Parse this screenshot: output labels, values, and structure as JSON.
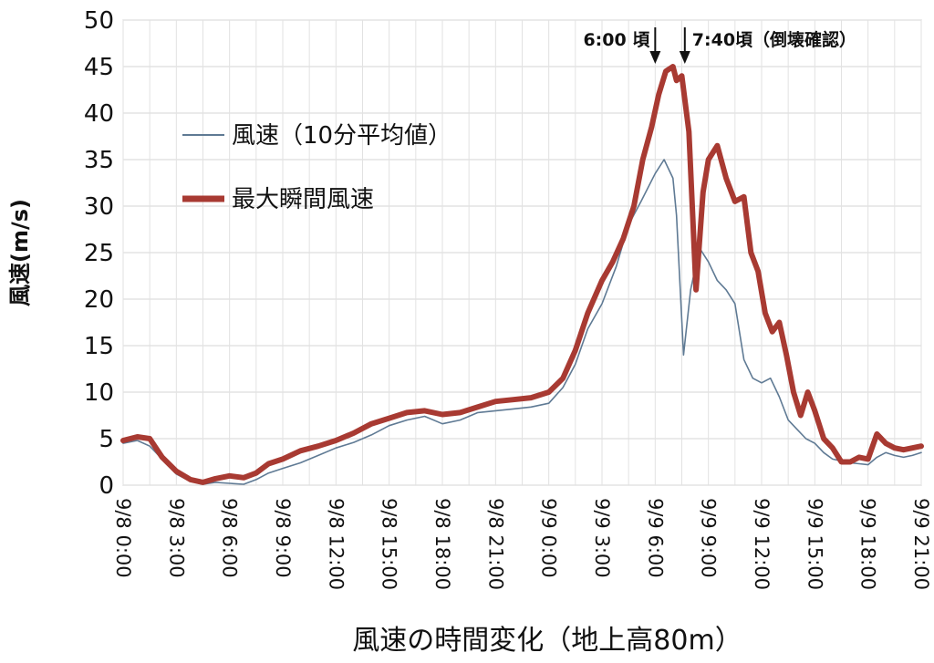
{
  "chart_data": {
    "type": "line",
    "title": "",
    "xlabel": "風速の時間変化（地上高80m）",
    "ylabel": "風速(m/s)",
    "ylim": [
      0,
      50
    ],
    "yticks": [
      0,
      5,
      10,
      15,
      20,
      25,
      30,
      35,
      40,
      45,
      50
    ],
    "xlim": [
      0,
      45
    ],
    "x_unit": "hours since 9/8 0:00",
    "xtick_values": [
      0,
      3,
      6,
      9,
      12,
      15,
      18,
      21,
      24,
      27,
      30,
      33,
      36,
      39,
      42,
      45
    ],
    "xtick_labels": [
      "9/8 0:00",
      "9/8 3:00",
      "9/8 6:00",
      "9/8 9:00",
      "9/8 12:00",
      "9/8 15:00",
      "9/8 18:00",
      "9/8 21:00",
      "9/9 0:00",
      "9/9 3:00",
      "9/9 6:00",
      "9/9 9:00",
      "9/9 12:00",
      "9/9 15:00",
      "9/9 18:00",
      "9/9 21:00"
    ],
    "grid": true,
    "legend": "left",
    "series": [
      {
        "name": "風速（10分平均値）",
        "color": "#5f7a94",
        "x": [
          0,
          0.8,
          1.5,
          2.2,
          3,
          3.8,
          4.5,
          5.2,
          6,
          6.8,
          7.5,
          8.2,
          9,
          10,
          11,
          12,
          13,
          14,
          15,
          16,
          17,
          18,
          19,
          20,
          21,
          22,
          23,
          24,
          24.8,
          25.5,
          26.2,
          27,
          27.8,
          28.5,
          29.2,
          30,
          30.5,
          31,
          31.2,
          31.6,
          32,
          32.5,
          33,
          33.5,
          34,
          34.5,
          35,
          35.5,
          36,
          36.5,
          37,
          37.5,
          38,
          38.5,
          39,
          39.5,
          40,
          40.5,
          41,
          41.5,
          42,
          42.5,
          43,
          43.5,
          44,
          44.5,
          45
        ],
        "values": [
          4.5,
          4.8,
          4.2,
          2.8,
          1.2,
          0.4,
          0.1,
          0.3,
          0.2,
          0.1,
          0.6,
          1.3,
          1.8,
          2.4,
          3.2,
          4.0,
          4.6,
          5.4,
          6.4,
          7.0,
          7.4,
          6.6,
          7.0,
          7.8,
          8.0,
          8.2,
          8.4,
          8.8,
          10.5,
          13.0,
          16.8,
          19.5,
          23.5,
          28.0,
          30.5,
          33.5,
          35.0,
          33.0,
          29.0,
          14.0,
          21.0,
          25.5,
          24.0,
          22.0,
          21.0,
          19.5,
          13.5,
          11.5,
          11.0,
          11.5,
          9.5,
          7.0,
          6.0,
          5.0,
          4.5,
          3.5,
          2.8,
          2.6,
          2.4,
          2.3,
          2.2,
          3.0,
          3.5,
          3.2,
          3.0,
          3.2,
          3.5
        ]
      },
      {
        "name": "最大瞬間風速",
        "color": "#a83a32",
        "x": [
          0,
          0.8,
          1.5,
          2.2,
          3,
          3.8,
          4.5,
          5.2,
          6,
          6.8,
          7.5,
          8.2,
          9,
          10,
          11,
          12,
          13,
          14,
          15,
          16,
          17,
          18,
          19,
          20,
          21,
          22,
          23,
          24,
          24.8,
          25.5,
          26.2,
          27,
          27.6,
          28.2,
          28.8,
          29.3,
          29.8,
          30.2,
          30.6,
          31,
          31.2,
          31.5,
          31.9,
          32.3,
          32.7,
          33,
          33.5,
          34,
          34.5,
          35,
          35.4,
          35.8,
          36.2,
          36.6,
          37,
          37.4,
          37.8,
          38.2,
          38.6,
          39,
          39.5,
          40,
          40.5,
          41,
          41.5,
          42,
          42.5,
          43,
          43.5,
          44,
          44.5,
          45
        ],
        "values": [
          4.8,
          5.2,
          5.0,
          3.0,
          1.5,
          0.6,
          0.3,
          0.7,
          1.0,
          0.8,
          1.3,
          2.3,
          2.8,
          3.7,
          4.2,
          4.8,
          5.6,
          6.6,
          7.2,
          7.8,
          8.0,
          7.6,
          7.8,
          8.4,
          9.0,
          9.2,
          9.4,
          10.0,
          11.5,
          14.5,
          18.5,
          22.0,
          24.0,
          26.5,
          30.0,
          35.0,
          38.5,
          42.0,
          44.5,
          45.0,
          43.5,
          44.0,
          38.0,
          21.0,
          31.5,
          35.0,
          36.5,
          33.0,
          30.5,
          31.0,
          25.0,
          23.0,
          18.5,
          16.5,
          17.5,
          14.0,
          10.0,
          7.5,
          10.0,
          8.0,
          5.0,
          4.0,
          2.5,
          2.5,
          3.0,
          2.8,
          5.5,
          4.5,
          4.0,
          3.8,
          4.0,
          4.2
        ]
      }
    ],
    "annotations": [
      {
        "text": "6:00 頃",
        "x": 30
      },
      {
        "text": "7:40頃（倒壊確認）",
        "x": 31.67
      }
    ]
  }
}
